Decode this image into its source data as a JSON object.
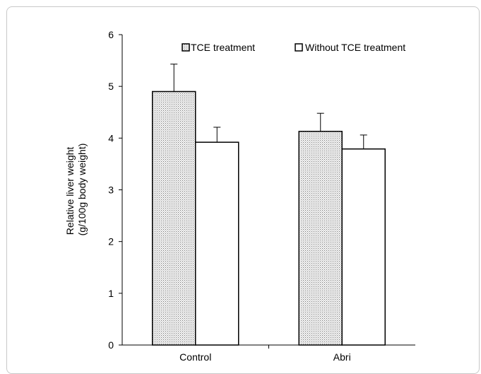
{
  "chart_data": {
    "type": "bar",
    "title": "",
    "xlabel": "",
    "ylabel_lines": [
      "Relative liver weight",
      "(g/100g body weight)"
    ],
    "ylim": [
      0,
      6
    ],
    "yticks": [
      "0",
      "1",
      "2",
      "3",
      "4",
      "5",
      "6"
    ],
    "categories": [
      "Control",
      "Abri"
    ],
    "series": [
      {
        "name": "TCE treatment",
        "values": [
          4.9,
          4.13
        ],
        "errors": [
          0.53,
          0.35
        ],
        "fill": "pattern-dots"
      },
      {
        "name": "Without TCE treatment",
        "values": [
          3.92,
          3.79
        ],
        "errors": [
          0.29,
          0.27
        ],
        "fill": "#ffffff"
      }
    ],
    "legend_position": "top",
    "grid": false
  },
  "colors": {
    "axis": "#000000",
    "bar_stroke": "#000000",
    "pattern_bg": "#f4f4f4",
    "pattern_dot": "#7a7a7a",
    "frame": "#c8c8c8"
  }
}
